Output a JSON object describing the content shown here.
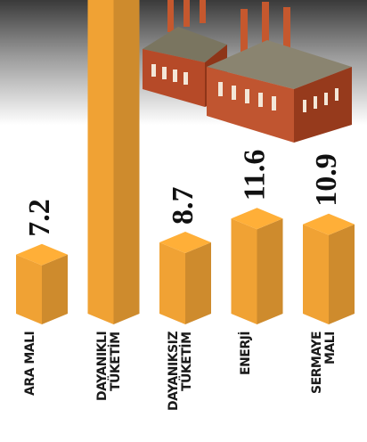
{
  "chart_data": {
    "type": "bar",
    "categories": [
      "ARA MALI",
      "DAYANIKLI\nTÜKETİM",
      "DAYANIKSIZ\nTÜKETİM",
      "ENERJİ",
      "SERMAYE\nMALI"
    ],
    "values": [
      7.2,
      40,
      8.7,
      11.6,
      10.9
    ],
    "value_labels": [
      "7.2",
      null,
      "8.7",
      "11.6",
      "10.9"
    ],
    "color": "#f0a234"
  }
}
